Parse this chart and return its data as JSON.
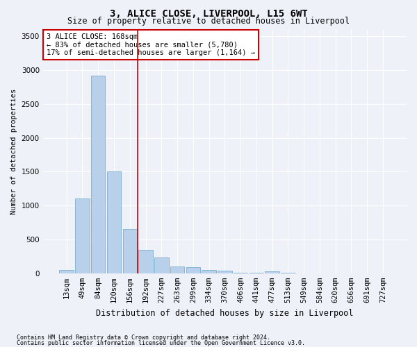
{
  "title": "3, ALICE CLOSE, LIVERPOOL, L15 6WT",
  "subtitle": "Size of property relative to detached houses in Liverpool",
  "xlabel": "Distribution of detached houses by size in Liverpool",
  "ylabel": "Number of detached properties",
  "footnote1": "Contains HM Land Registry data © Crown copyright and database right 2024.",
  "footnote2": "Contains public sector information licensed under the Open Government Licence v3.0.",
  "categories": [
    "13sqm",
    "49sqm",
    "84sqm",
    "120sqm",
    "156sqm",
    "192sqm",
    "227sqm",
    "263sqm",
    "299sqm",
    "334sqm",
    "370sqm",
    "406sqm",
    "441sqm",
    "477sqm",
    "513sqm",
    "549sqm",
    "584sqm",
    "620sqm",
    "656sqm",
    "691sqm",
    "727sqm"
  ],
  "values": [
    50,
    1100,
    2920,
    1500,
    650,
    345,
    230,
    105,
    90,
    50,
    35,
    10,
    10,
    30,
    5,
    0,
    0,
    0,
    0,
    0,
    0
  ],
  "bar_color": "#b8d0ea",
  "bar_edge_color": "#7aaed0",
  "background_color": "#eef2f8",
  "grid_color": "#ffffff",
  "vline_x": 4.5,
  "vline_color": "#cc0000",
  "annotation_title": "3 ALICE CLOSE: 168sqm",
  "annotation_line1": "← 83% of detached houses are smaller (5,780)",
  "annotation_line2": "17% of semi-detached houses are larger (1,164) →",
  "annotation_box_color": "#ffffff",
  "annotation_box_edge": "#cc0000",
  "ylim": [
    0,
    3600
  ],
  "yticks": [
    0,
    500,
    1000,
    1500,
    2000,
    2500,
    3000,
    3500
  ]
}
